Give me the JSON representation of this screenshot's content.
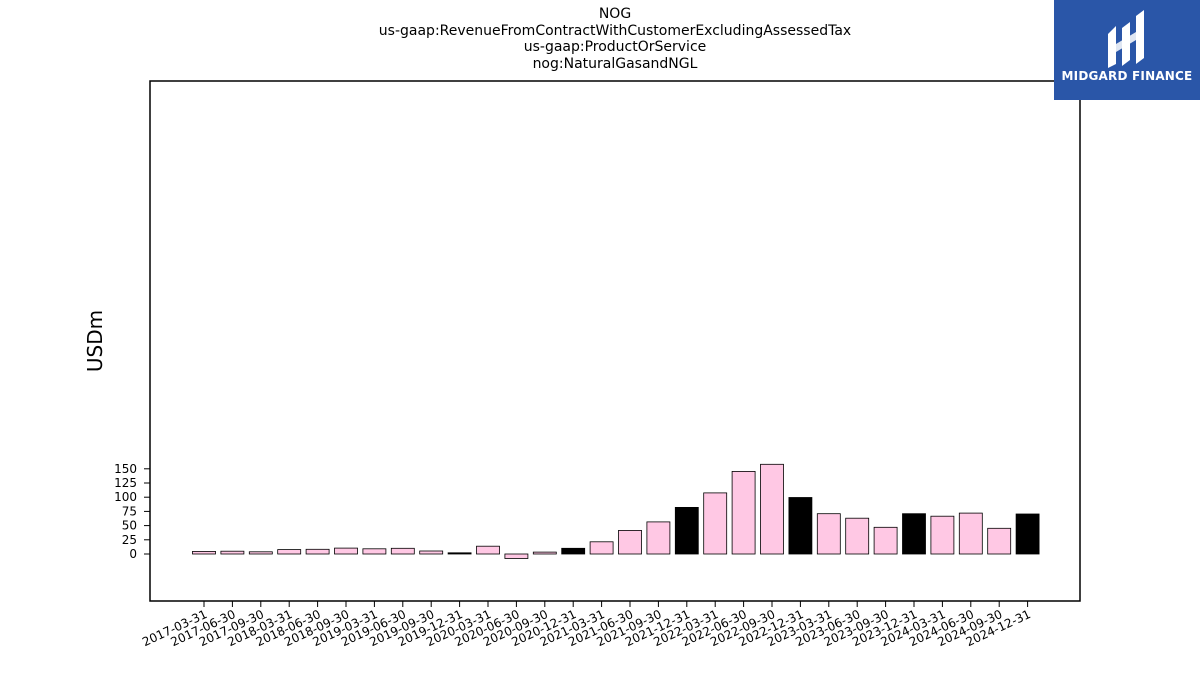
{
  "title_lines": [
    "NOG",
    "us-gaap:RevenueFromContractWithCustomerExcludingAssessedTax",
    "us-gaap:ProductOrService",
    "nog:NaturalGasandNGL"
  ],
  "logo": {
    "text": "MIDGARD FINANCE",
    "background": "#2a56a8"
  },
  "chart_data": {
    "type": "bar",
    "title": "NOG\nus-gaap:RevenueFromContractWithCustomerExcludingAssessedTax\nus-gaap:ProductOrService\nnog:NaturalGasandNGL",
    "xlabel": "",
    "ylabel": "USDm",
    "ylim": [
      -17,
      166
    ],
    "yticks": [
      0,
      25,
      50,
      75,
      100,
      125,
      150
    ],
    "grid": false,
    "colors": {
      "quarter": "#ffc8e4",
      "year_end": "#000000",
      "edge": "#000000"
    },
    "categories": [
      "2017-03-31",
      "2017-06-30",
      "2017-09-30",
      "2018-03-31",
      "2018-06-30",
      "2018-09-30",
      "2019-03-31",
      "2019-06-30",
      "2019-09-30",
      "2019-12-31",
      "2020-03-31",
      "2020-06-30",
      "2020-09-30",
      "2020-12-31",
      "2021-03-31",
      "2021-06-30",
      "2021-09-30",
      "2021-12-31",
      "2022-03-31",
      "2022-06-30",
      "2022-09-30",
      "2022-12-31",
      "2023-03-31",
      "2023-06-30",
      "2023-09-30",
      "2023-12-31",
      "2024-03-31",
      "2024-06-30",
      "2024-09-30",
      "2024-12-31"
    ],
    "values": [
      4.5,
      5.0,
      3.8,
      7.8,
      8.2,
      10.3,
      9.2,
      10.0,
      5.3,
      2.2,
      13.8,
      -8.0,
      3.3,
      10.0,
      21.5,
      41.5,
      56.5,
      82.0,
      107.5,
      145.5,
      158.0,
      99.5,
      71.0,
      63.0,
      47.0,
      71.0,
      66.5,
      72.0,
      45.2,
      70.5
    ],
    "year_end": [
      false,
      false,
      false,
      false,
      false,
      false,
      false,
      false,
      false,
      true,
      false,
      false,
      false,
      true,
      false,
      false,
      false,
      true,
      false,
      false,
      false,
      true,
      false,
      false,
      false,
      true,
      false,
      false,
      false,
      true
    ]
  }
}
